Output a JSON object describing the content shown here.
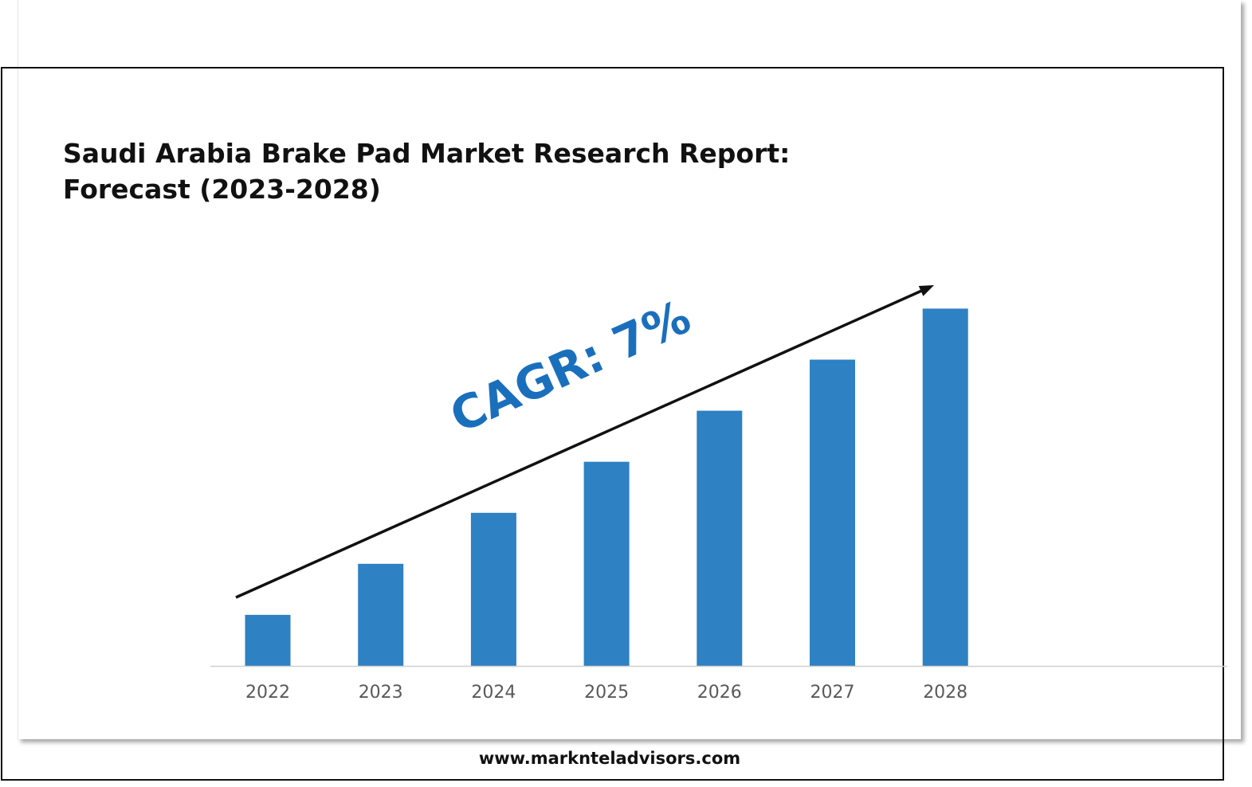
{
  "page": {
    "title_line1": "Saudi Arabia Brake Pad Market Research Report:",
    "title_line2": "Forecast (2023-2028)",
    "footer_url": "www.marknteladvisors.com"
  },
  "colors": {
    "bar": "#2e81c2",
    "cagr_text": "#1a6fbd",
    "arrow": "#111111",
    "axis_line": "#d0d0d0",
    "tick_label": "#595959"
  },
  "chart_data": {
    "type": "bar",
    "categories": [
      "2022",
      "2023",
      "2024",
      "2025",
      "2026",
      "2027",
      "2028"
    ],
    "values": [
      1.0,
      2.0,
      3.0,
      4.0,
      5.0,
      6.0,
      7.0
    ],
    "ylim": [
      0,
      7.35
    ],
    "title": "Saudi Arabia Brake Pad Market Research Report: Forecast (2023-2028)",
    "xlabel": "",
    "ylabel": "",
    "grid": false,
    "legend": "none",
    "annotations": [
      {
        "text": "CAGR: 7%",
        "kind": "trend-arrow"
      }
    ]
  }
}
